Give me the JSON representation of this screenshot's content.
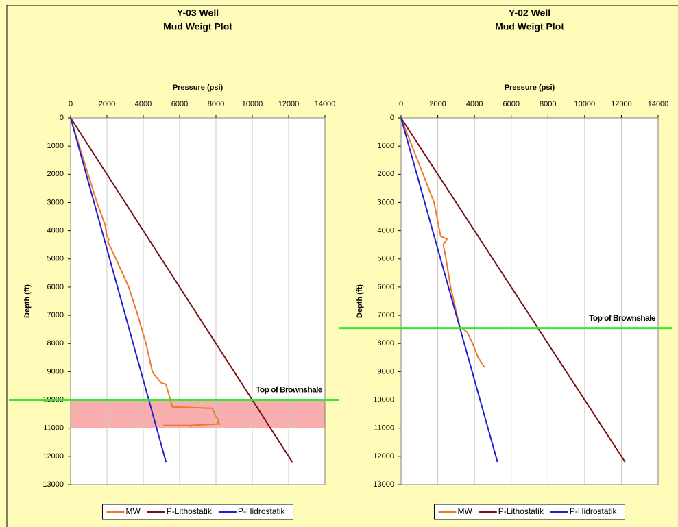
{
  "chart_data": [
    {
      "type": "line",
      "title": "Y-03 Well",
      "subtitle": "Mud Weigt Plot",
      "x_label": "Pressure (psi)",
      "y_label": "Depth (ft)",
      "xlim": [
        0,
        14000
      ],
      "xticks": [
        0,
        2000,
        4000,
        6000,
        8000,
        10000,
        12000,
        14000
      ],
      "ylim": [
        0,
        13000
      ],
      "yticks": [
        0,
        1000,
        2000,
        3000,
        4000,
        5000,
        6000,
        7000,
        8000,
        9000,
        10000,
        11000,
        12000,
        13000
      ],
      "y_inverted": true,
      "legend": "bottom",
      "series": [
        {
          "name": "MW",
          "color": "#f07828",
          "x": [
            0,
            480,
            960,
            1450,
            1900,
            2000,
            2100,
            2050,
            2500,
            3200,
            3700,
            4150,
            4500,
            4600,
            5000,
            5250,
            5600,
            7800,
            8000,
            8150,
            8100,
            8200,
            6600,
            6600,
            6600,
            5100
          ],
          "values": [
            0,
            1000,
            2000,
            3000,
            3800,
            4200,
            4300,
            4400,
            5000,
            6000,
            7000,
            8000,
            9000,
            9100,
            9400,
            9450,
            10250,
            10300,
            10600,
            10700,
            10800,
            10850,
            10900,
            10980,
            10900,
            10900
          ]
        },
        {
          "name": "P-Lithostatik",
          "color": "#7a1010",
          "x": [
            0,
            12200
          ],
          "values": [
            0,
            12200
          ]
        },
        {
          "name": "P-Hidrostatik",
          "color": "#2020d0",
          "x": [
            0,
            5250
          ],
          "values": [
            0,
            12200
          ]
        }
      ],
      "annotations": [
        {
          "text": "Top of Brownshale",
          "y": 10000,
          "color": "#33e833"
        }
      ],
      "bands": [
        {
          "y0": 10000,
          "y1": 11000,
          "color": "#f7a0a0"
        }
      ]
    },
    {
      "type": "line",
      "title": "Y-02 Well",
      "subtitle": "Mud Weigt Plot",
      "x_label": "Pressure (psi)",
      "y_label": "Depth (ft)",
      "xlim": [
        0,
        14000
      ],
      "xticks": [
        0,
        2000,
        4000,
        6000,
        8000,
        10000,
        12000,
        14000
      ],
      "ylim": [
        0,
        13000
      ],
      "yticks": [
        0,
        1000,
        2000,
        3000,
        4000,
        5000,
        6000,
        7000,
        8000,
        9000,
        10000,
        11000,
        12000,
        13000
      ],
      "y_inverted": true,
      "legend": "bottom",
      "series": [
        {
          "name": "MW",
          "color": "#f07828",
          "x": [
            0,
            600,
            1200,
            1800,
            2160,
            2500,
            2300,
            2450,
            2700,
            3050,
            3200,
            3600,
            3900,
            4200,
            4550
          ],
          "values": [
            0,
            1000,
            2000,
            3000,
            4200,
            4300,
            4500,
            5000,
            6000,
            7000,
            7400,
            7600,
            8000,
            8500,
            8850
          ]
        },
        {
          "name": "P-Lithostatik",
          "color": "#7a1010",
          "x": [
            0,
            12200
          ],
          "values": [
            0,
            12200
          ]
        },
        {
          "name": "P-Hidrostatik",
          "color": "#2020d0",
          "x": [
            0,
            5250
          ],
          "values": [
            0,
            12200
          ]
        }
      ],
      "annotations": [
        {
          "text": "Top of Brownshale",
          "y": 7450,
          "color": "#33e833"
        }
      ]
    }
  ]
}
